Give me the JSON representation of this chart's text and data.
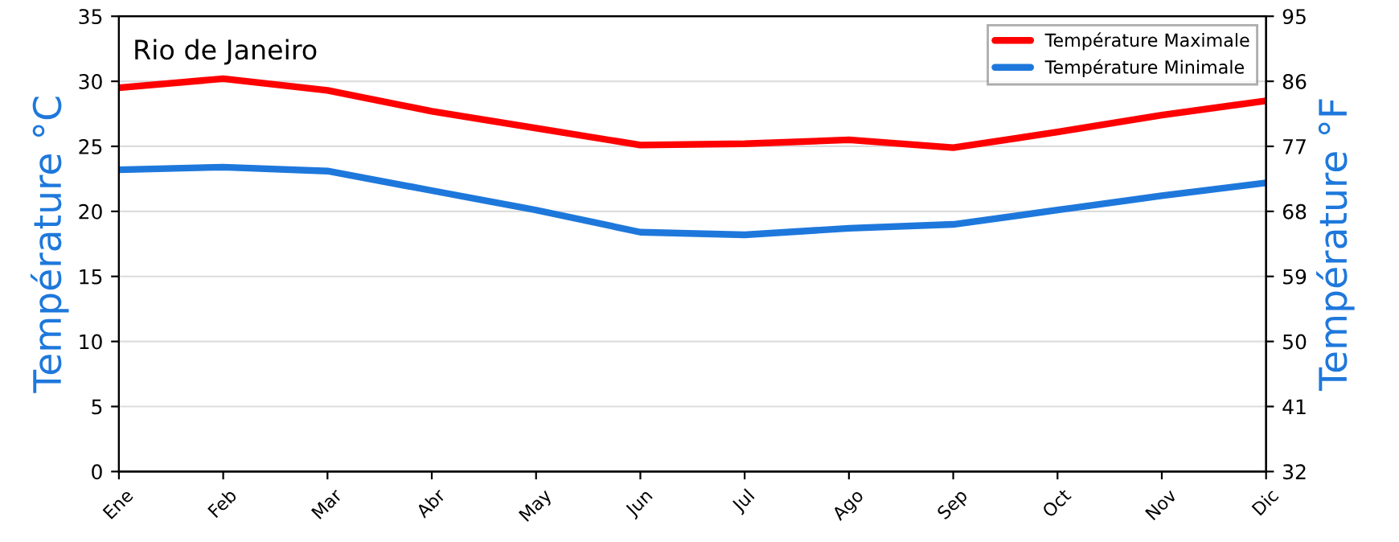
{
  "chart_data": {
    "type": "line",
    "title": "Rio de Janeiro",
    "ylabel": "Température °C",
    "y2label": "Température °F",
    "categories": [
      "Ene",
      "Feb",
      "Mar",
      "Abr",
      "May",
      "Jun",
      "Jul",
      "Ago",
      "Sep",
      "Oct",
      "Nov",
      "Dic"
    ],
    "series": [
      {
        "name": "Température Maximale",
        "color": "#ff0000",
        "values": [
          29.5,
          30.2,
          29.3,
          27.7,
          26.4,
          25.1,
          25.2,
          25.5,
          24.9,
          26.1,
          27.4,
          28.5
        ]
      },
      {
        "name": "Température Minimale",
        "color": "#1e78dc",
        "values": [
          23.2,
          23.4,
          23.1,
          21.6,
          20.1,
          18.4,
          18.2,
          18.7,
          19.0,
          20.1,
          21.2,
          22.2
        ]
      }
    ],
    "ylim": [
      0,
      35
    ],
    "yticks": [
      0,
      5,
      10,
      15,
      20,
      25,
      30,
      35
    ],
    "y2lim": [
      32,
      95
    ],
    "y2ticks": [
      32,
      41,
      50,
      59,
      68,
      77,
      86,
      95
    ],
    "grid": "y",
    "legend": "top right",
    "marker": "none",
    "line_style": "solid"
  }
}
